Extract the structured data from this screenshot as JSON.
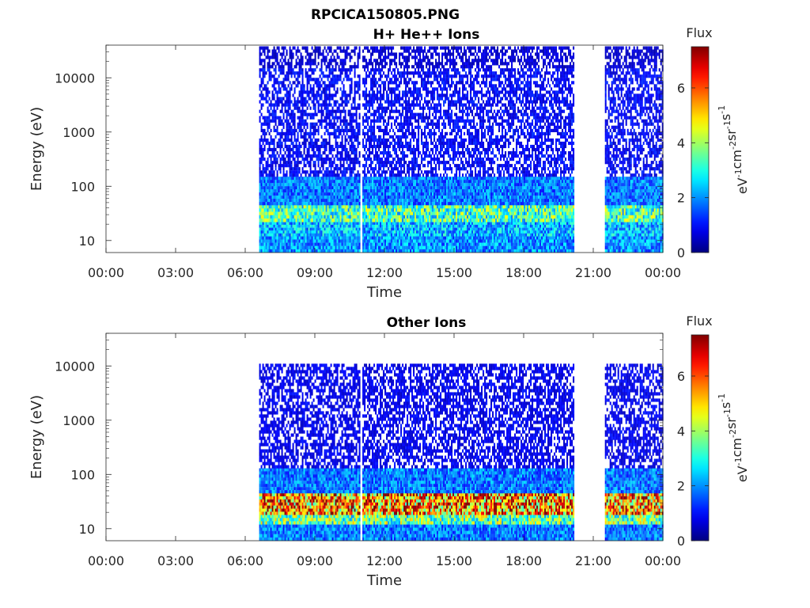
{
  "figure_title": "RPCICA150805.PNG",
  "chart_data": [
    {
      "type": "heatmap",
      "title": "H+ He++ Ions",
      "xlabel": "Time",
      "ylabel": "Energy (eV)",
      "x_ticks": [
        "00:00",
        "03:00",
        "06:00",
        "09:00",
        "12:00",
        "15:00",
        "18:00",
        "21:00",
        "00:00"
      ],
      "x_range_hours": [
        0,
        24
      ],
      "y_scale": "log",
      "y_ticks": [
        "10",
        "100",
        "1000",
        "10000"
      ],
      "y_tick_values": [
        10,
        100,
        1000,
        10000
      ],
      "y_range": [
        6,
        40000
      ],
      "colorbar": {
        "label": "Flux",
        "unit": "eV-1cm-2sr-1s-1",
        "range": [
          0,
          7.5
        ],
        "ticks": [
          "0",
          "2",
          "4",
          "6"
        ],
        "colormap": "jet"
      },
      "data_segments_hours": [
        [
          6.6,
          10.95
        ],
        [
          11.05,
          20.15
        ],
        [
          21.5,
          24.0
        ]
      ],
      "profile": [
        {
          "energy_range": [
            6,
            12
          ],
          "flux": 2.0
        },
        {
          "energy_range": [
            12,
            22
          ],
          "flux": 2.3
        },
        {
          "energy_range": [
            22,
            45
          ],
          "flux": 3.3
        },
        {
          "energy_range": [
            45,
            150
          ],
          "flux": 1.8
        },
        {
          "energy_range": [
            150,
            15000
          ],
          "flux": 0.9
        },
        {
          "energy_range": [
            15000,
            38000
          ],
          "flux": 0.6
        }
      ]
    },
    {
      "type": "heatmap",
      "title": "Other Ions",
      "xlabel": "Time",
      "ylabel": "Energy (eV)",
      "x_ticks": [
        "00:00",
        "03:00",
        "06:00",
        "09:00",
        "12:00",
        "15:00",
        "18:00",
        "21:00",
        "00:00"
      ],
      "x_range_hours": [
        0,
        24
      ],
      "y_scale": "log",
      "y_ticks": [
        "10",
        "100",
        "1000",
        "10000"
      ],
      "y_tick_values": [
        10,
        100,
        1000,
        10000
      ],
      "y_range": [
        6,
        40000
      ],
      "colorbar": {
        "label": "Flux",
        "unit": "eV-1cm-2sr-1s-1",
        "range": [
          0,
          7.5
        ],
        "ticks": [
          "0",
          "2",
          "4",
          "6"
        ],
        "colormap": "jet"
      },
      "data_segments_hours": [
        [
          6.6,
          10.95
        ],
        [
          11.05,
          20.15
        ],
        [
          21.5,
          24.0
        ]
      ],
      "profile": [
        {
          "energy_range": [
            6,
            12
          ],
          "flux": 1.8
        },
        {
          "energy_range": [
            12,
            18
          ],
          "flux": 3.6
        },
        {
          "energy_range": [
            18,
            45
          ],
          "flux": 5.6
        },
        {
          "energy_range": [
            45,
            130
          ],
          "flux": 1.8
        },
        {
          "energy_range": [
            130,
            11000
          ],
          "flux": 0.8
        }
      ]
    }
  ]
}
